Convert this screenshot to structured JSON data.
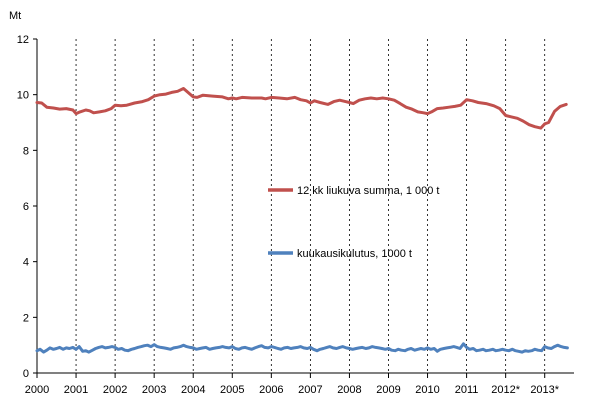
{
  "chart_data": {
    "type": "line",
    "unit_label": "Mt",
    "ylim": [
      0,
      12
    ],
    "yticks": [
      "0",
      "2",
      "4",
      "6",
      "8",
      "10",
      "12"
    ],
    "xlim": [
      2000,
      2013.75
    ],
    "xticks": [
      "2000",
      "2001",
      "2002",
      "2003",
      "2004",
      "2005",
      "2006",
      "2007",
      "2008",
      "2009",
      "2010",
      "2011",
      "2012*",
      "2013*"
    ],
    "grid": "vertical dashed at year boundaries",
    "legend_placement": "center-right, inside plot",
    "series": [
      {
        "name": "12 kk liukuva summa,  1 000 t",
        "color": "#c0504d",
        "points": [
          [
            2000.0,
            9.72
          ],
          [
            2000.12,
            9.7
          ],
          [
            2000.25,
            9.55
          ],
          [
            2000.42,
            9.52
          ],
          [
            2000.58,
            9.48
          ],
          [
            2000.75,
            9.5
          ],
          [
            2000.92,
            9.45
          ],
          [
            2001.0,
            9.32
          ],
          [
            2001.1,
            9.38
          ],
          [
            2001.25,
            9.45
          ],
          [
            2001.35,
            9.42
          ],
          [
            2001.45,
            9.35
          ],
          [
            2001.6,
            9.38
          ],
          [
            2001.75,
            9.42
          ],
          [
            2001.9,
            9.5
          ],
          [
            2002.0,
            9.62
          ],
          [
            2002.15,
            9.6
          ],
          [
            2002.3,
            9.62
          ],
          [
            2002.5,
            9.7
          ],
          [
            2002.7,
            9.75
          ],
          [
            2002.85,
            9.82
          ],
          [
            2003.0,
            9.95
          ],
          [
            2003.15,
            10.0
          ],
          [
            2003.3,
            10.02
          ],
          [
            2003.45,
            10.08
          ],
          [
            2003.6,
            10.12
          ],
          [
            2003.75,
            10.22
          ],
          [
            2003.85,
            10.1
          ],
          [
            2004.0,
            9.92
          ],
          [
            2004.1,
            9.9
          ],
          [
            2004.25,
            9.98
          ],
          [
            2004.5,
            9.95
          ],
          [
            2004.75,
            9.92
          ],
          [
            2004.9,
            9.85
          ],
          [
            2005.0,
            9.88
          ],
          [
            2005.1,
            9.85
          ],
          [
            2005.25,
            9.9
          ],
          [
            2005.5,
            9.88
          ],
          [
            2005.75,
            9.88
          ],
          [
            2005.85,
            9.85
          ],
          [
            2006.0,
            9.9
          ],
          [
            2006.2,
            9.88
          ],
          [
            2006.4,
            9.85
          ],
          [
            2006.6,
            9.9
          ],
          [
            2006.75,
            9.82
          ],
          [
            2006.9,
            9.78
          ],
          [
            2007.0,
            9.7
          ],
          [
            2007.1,
            9.78
          ],
          [
            2007.25,
            9.72
          ],
          [
            2007.45,
            9.65
          ],
          [
            2007.6,
            9.75
          ],
          [
            2007.75,
            9.8
          ],
          [
            2007.9,
            9.75
          ],
          [
            2008.0,
            9.72
          ],
          [
            2008.1,
            9.68
          ],
          [
            2008.25,
            9.8
          ],
          [
            2008.4,
            9.85
          ],
          [
            2008.55,
            9.88
          ],
          [
            2008.7,
            9.85
          ],
          [
            2008.85,
            9.88
          ],
          [
            2009.0,
            9.85
          ],
          [
            2009.15,
            9.8
          ],
          [
            2009.3,
            9.68
          ],
          [
            2009.45,
            9.55
          ],
          [
            2009.6,
            9.48
          ],
          [
            2009.75,
            9.38
          ],
          [
            2009.9,
            9.35
          ],
          [
            2010.0,
            9.32
          ],
          [
            2010.1,
            9.38
          ],
          [
            2010.25,
            9.5
          ],
          [
            2010.4,
            9.52
          ],
          [
            2010.55,
            9.55
          ],
          [
            2010.7,
            9.58
          ],
          [
            2010.85,
            9.62
          ],
          [
            2011.0,
            9.82
          ],
          [
            2011.15,
            9.78
          ],
          [
            2011.3,
            9.72
          ],
          [
            2011.5,
            9.68
          ],
          [
            2011.7,
            9.6
          ],
          [
            2011.85,
            9.5
          ],
          [
            2012.0,
            9.25
          ],
          [
            2012.15,
            9.2
          ],
          [
            2012.3,
            9.15
          ],
          [
            2012.45,
            9.05
          ],
          [
            2012.6,
            8.92
          ],
          [
            2012.75,
            8.85
          ],
          [
            2012.9,
            8.8
          ],
          [
            2013.0,
            8.95
          ],
          [
            2013.1,
            9.0
          ],
          [
            2013.25,
            9.4
          ],
          [
            2013.4,
            9.58
          ],
          [
            2013.55,
            9.65
          ]
        ]
      },
      {
        "name": "kuukausikulutus, 1000 t",
        "color": "#4f81bd",
        "points": [
          [
            2000.0,
            0.8
          ],
          [
            2000.08,
            0.85
          ],
          [
            2000.17,
            0.75
          ],
          [
            2000.25,
            0.82
          ],
          [
            2000.33,
            0.9
          ],
          [
            2000.42,
            0.85
          ],
          [
            2000.5,
            0.88
          ],
          [
            2000.58,
            0.92
          ],
          [
            2000.67,
            0.85
          ],
          [
            2000.75,
            0.9
          ],
          [
            2000.83,
            0.88
          ],
          [
            2000.92,
            0.92
          ],
          [
            2001.0,
            0.85
          ],
          [
            2001.08,
            0.95
          ],
          [
            2001.17,
            0.78
          ],
          [
            2001.25,
            0.8
          ],
          [
            2001.33,
            0.75
          ],
          [
            2001.42,
            0.82
          ],
          [
            2001.5,
            0.88
          ],
          [
            2001.58,
            0.92
          ],
          [
            2001.67,
            0.95
          ],
          [
            2001.75,
            0.9
          ],
          [
            2001.83,
            0.92
          ],
          [
            2001.92,
            0.95
          ],
          [
            2002.0,
            0.92
          ],
          [
            2002.08,
            0.85
          ],
          [
            2002.17,
            0.88
          ],
          [
            2002.25,
            0.82
          ],
          [
            2002.33,
            0.8
          ],
          [
            2002.42,
            0.85
          ],
          [
            2002.5,
            0.88
          ],
          [
            2002.58,
            0.92
          ],
          [
            2002.67,
            0.95
          ],
          [
            2002.75,
            0.98
          ],
          [
            2002.83,
            1.0
          ],
          [
            2002.92,
            0.95
          ],
          [
            2003.0,
            1.02
          ],
          [
            2003.08,
            0.95
          ],
          [
            2003.17,
            0.92
          ],
          [
            2003.25,
            0.9
          ],
          [
            2003.33,
            0.88
          ],
          [
            2003.42,
            0.85
          ],
          [
            2003.5,
            0.9
          ],
          [
            2003.58,
            0.92
          ],
          [
            2003.67,
            0.95
          ],
          [
            2003.75,
            1.0
          ],
          [
            2003.83,
            0.95
          ],
          [
            2003.92,
            0.92
          ],
          [
            2004.0,
            0.9
          ],
          [
            2004.08,
            0.85
          ],
          [
            2004.17,
            0.88
          ],
          [
            2004.25,
            0.9
          ],
          [
            2004.33,
            0.92
          ],
          [
            2004.42,
            0.85
          ],
          [
            2004.5,
            0.88
          ],
          [
            2004.58,
            0.9
          ],
          [
            2004.67,
            0.92
          ],
          [
            2004.75,
            0.95
          ],
          [
            2004.83,
            0.92
          ],
          [
            2004.92,
            0.9
          ],
          [
            2005.0,
            0.95
          ],
          [
            2005.08,
            0.88
          ],
          [
            2005.17,
            0.85
          ],
          [
            2005.25,
            0.9
          ],
          [
            2005.33,
            0.92
          ],
          [
            2005.42,
            0.88
          ],
          [
            2005.5,
            0.85
          ],
          [
            2005.58,
            0.9
          ],
          [
            2005.67,
            0.95
          ],
          [
            2005.75,
            0.98
          ],
          [
            2005.83,
            0.92
          ],
          [
            2005.92,
            0.9
          ],
          [
            2006.0,
            0.95
          ],
          [
            2006.08,
            0.92
          ],
          [
            2006.17,
            0.88
          ],
          [
            2006.25,
            0.85
          ],
          [
            2006.33,
            0.9
          ],
          [
            2006.42,
            0.92
          ],
          [
            2006.5,
            0.88
          ],
          [
            2006.58,
            0.9
          ],
          [
            2006.67,
            0.92
          ],
          [
            2006.75,
            0.95
          ],
          [
            2006.83,
            0.9
          ],
          [
            2006.92,
            0.88
          ],
          [
            2007.0,
            0.92
          ],
          [
            2007.08,
            0.85
          ],
          [
            2007.17,
            0.8
          ],
          [
            2007.25,
            0.85
          ],
          [
            2007.33,
            0.88
          ],
          [
            2007.42,
            0.92
          ],
          [
            2007.5,
            0.95
          ],
          [
            2007.58,
            0.9
          ],
          [
            2007.67,
            0.88
          ],
          [
            2007.75,
            0.92
          ],
          [
            2007.83,
            0.95
          ],
          [
            2007.92,
            0.9
          ],
          [
            2008.0,
            0.88
          ],
          [
            2008.08,
            0.85
          ],
          [
            2008.17,
            0.88
          ],
          [
            2008.25,
            0.9
          ],
          [
            2008.33,
            0.92
          ],
          [
            2008.42,
            0.88
          ],
          [
            2008.5,
            0.9
          ],
          [
            2008.58,
            0.95
          ],
          [
            2008.67,
            0.92
          ],
          [
            2008.75,
            0.9
          ],
          [
            2008.83,
            0.88
          ],
          [
            2008.92,
            0.85
          ],
          [
            2009.0,
            0.88
          ],
          [
            2009.08,
            0.82
          ],
          [
            2009.17,
            0.8
          ],
          [
            2009.25,
            0.85
          ],
          [
            2009.33,
            0.82
          ],
          [
            2009.42,
            0.8
          ],
          [
            2009.5,
            0.85
          ],
          [
            2009.58,
            0.88
          ],
          [
            2009.67,
            0.82
          ],
          [
            2009.75,
            0.85
          ],
          [
            2009.83,
            0.88
          ],
          [
            2009.92,
            0.85
          ],
          [
            2010.0,
            0.9
          ],
          [
            2010.08,
            0.85
          ],
          [
            2010.17,
            0.88
          ],
          [
            2010.25,
            0.78
          ],
          [
            2010.33,
            0.85
          ],
          [
            2010.42,
            0.88
          ],
          [
            2010.5,
            0.9
          ],
          [
            2010.58,
            0.92
          ],
          [
            2010.67,
            0.95
          ],
          [
            2010.75,
            0.92
          ],
          [
            2010.83,
            0.88
          ],
          [
            2010.92,
            1.05
          ],
          [
            2011.0,
            0.92
          ],
          [
            2011.08,
            0.85
          ],
          [
            2011.17,
            0.88
          ],
          [
            2011.25,
            0.8
          ],
          [
            2011.33,
            0.82
          ],
          [
            2011.42,
            0.85
          ],
          [
            2011.5,
            0.8
          ],
          [
            2011.58,
            0.82
          ],
          [
            2011.67,
            0.85
          ],
          [
            2011.75,
            0.8
          ],
          [
            2011.83,
            0.82
          ],
          [
            2011.92,
            0.85
          ],
          [
            2012.0,
            0.82
          ],
          [
            2012.08,
            0.8
          ],
          [
            2012.17,
            0.85
          ],
          [
            2012.25,
            0.8
          ],
          [
            2012.33,
            0.78
          ],
          [
            2012.42,
            0.75
          ],
          [
            2012.5,
            0.8
          ],
          [
            2012.58,
            0.78
          ],
          [
            2012.67,
            0.8
          ],
          [
            2012.75,
            0.85
          ],
          [
            2012.83,
            0.82
          ],
          [
            2012.92,
            0.8
          ],
          [
            2013.0,
            0.95
          ],
          [
            2013.08,
            0.9
          ],
          [
            2013.17,
            0.88
          ],
          [
            2013.25,
            0.95
          ],
          [
            2013.33,
            1.0
          ],
          [
            2013.42,
            0.95
          ],
          [
            2013.5,
            0.92
          ],
          [
            2013.58,
            0.9
          ]
        ]
      }
    ]
  }
}
